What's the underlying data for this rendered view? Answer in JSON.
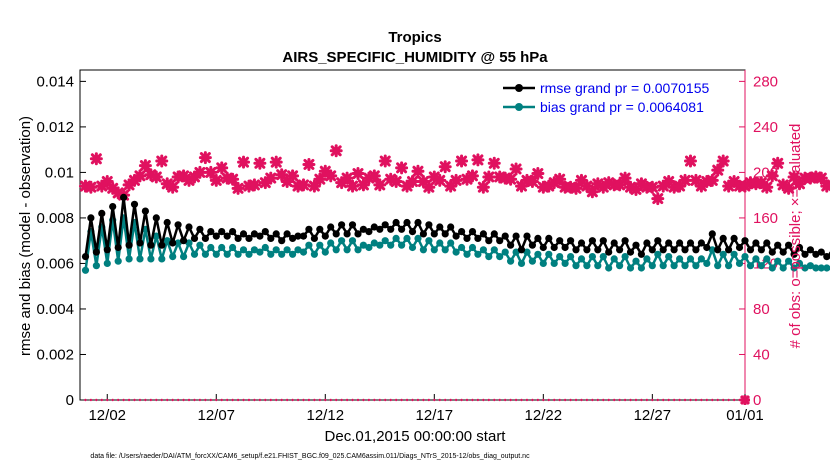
{
  "chart_data": {
    "type": "line",
    "title": "Tropics",
    "subtitle": "AIRS_SPECIFIC_HUMIDITY @ 55 hPa",
    "xlabel": "Dec.01,2015 00:00:00 start",
    "ylabel_left": "rmse and bias (model - observation)",
    "ylabel_right": "# of obs: o=possible; ×=evaluated",
    "ylim_left": [
      0,
      0.0145
    ],
    "ylim_right": [
      0,
      290
    ],
    "xlim": [
      0.75,
      31.25
    ],
    "yticks_left": [
      "0",
      "0.002",
      "0.004",
      "0.006",
      "0.008",
      "0.01",
      "0.012",
      "0.014"
    ],
    "yticks_right": [
      "0",
      "40",
      "80",
      "120",
      "160",
      "200",
      "240",
      "280"
    ],
    "xtick_labels": [
      "12/02",
      "12/07",
      "12/12",
      "12/17",
      "12/22",
      "12/27",
      "01/01"
    ],
    "xtick_values": [
      2,
      7,
      12,
      17,
      22,
      27,
      32
    ],
    "grid": false,
    "legend_position": "top-right",
    "series": [
      {
        "name": "rmse grand pr = 0.0070155",
        "color": "#000000",
        "values": [
          0.0063,
          0.008,
          0.0065,
          0.0082,
          0.0066,
          0.0085,
          0.0067,
          0.0089,
          0.0068,
          0.0086,
          0.0069,
          0.0083,
          0.0068,
          0.008,
          0.0068,
          0.0078,
          0.0069,
          0.0077,
          0.007,
          0.0076,
          0.0071,
          0.0075,
          0.0071,
          0.0074,
          0.0072,
          0.0074,
          0.0072,
          0.0074,
          0.0071,
          0.0073,
          0.0071,
          0.0073,
          0.0072,
          0.0074,
          0.0071,
          0.0073,
          0.007,
          0.0073,
          0.0071,
          0.0072,
          0.0072,
          0.0075,
          0.0071,
          0.0075,
          0.0072,
          0.0076,
          0.0073,
          0.0077,
          0.0073,
          0.0077,
          0.0073,
          0.0075,
          0.0074,
          0.0076,
          0.0075,
          0.0077,
          0.0075,
          0.0078,
          0.0075,
          0.0078,
          0.0074,
          0.0078,
          0.0073,
          0.0077,
          0.0073,
          0.0076,
          0.0073,
          0.0076,
          0.0072,
          0.0074,
          0.0071,
          0.0074,
          0.0071,
          0.0073,
          0.007,
          0.0073,
          0.007,
          0.0072,
          0.0068,
          0.0072,
          0.0066,
          0.0072,
          0.0068,
          0.0071,
          0.0067,
          0.0071,
          0.0067,
          0.007,
          0.0067,
          0.007,
          0.0066,
          0.0069,
          0.0066,
          0.007,
          0.0066,
          0.007,
          0.0065,
          0.0069,
          0.0066,
          0.007,
          0.0065,
          0.0068,
          0.0064,
          0.0069,
          0.0066,
          0.007,
          0.0066,
          0.0069,
          0.0066,
          0.0069,
          0.0066,
          0.0069,
          0.0066,
          0.0069,
          0.0067,
          0.0073,
          0.0066,
          0.0071,
          0.0066,
          0.0071,
          0.0067,
          0.007,
          0.0066,
          0.0069,
          0.0066,
          0.0069,
          0.0065,
          0.0068,
          0.0065,
          0.0068,
          0.0064,
          0.0067,
          0.0064,
          0.0066,
          0.0064,
          0.0065,
          0.0063,
          0.0064,
          0.0062
        ]
      },
      {
        "name": "bias grand pr = 0.0064081",
        "color": "#008080",
        "values": [
          0.0057,
          0.0074,
          0.0059,
          0.0076,
          0.006,
          0.0079,
          0.0061,
          0.008,
          0.0062,
          0.0078,
          0.0062,
          0.0075,
          0.0062,
          0.0072,
          0.0062,
          0.007,
          0.0063,
          0.0069,
          0.0063,
          0.0069,
          0.0064,
          0.0068,
          0.0064,
          0.0067,
          0.0064,
          0.0067,
          0.0064,
          0.0067,
          0.0064,
          0.0066,
          0.0064,
          0.0066,
          0.0065,
          0.0067,
          0.0064,
          0.0066,
          0.0064,
          0.0066,
          0.0064,
          0.0066,
          0.0065,
          0.0068,
          0.0064,
          0.0068,
          0.0065,
          0.0069,
          0.0066,
          0.007,
          0.0066,
          0.007,
          0.0066,
          0.0068,
          0.0067,
          0.0069,
          0.0068,
          0.007,
          0.0068,
          0.0071,
          0.0068,
          0.0071,
          0.0067,
          0.0071,
          0.0066,
          0.007,
          0.0066,
          0.0069,
          0.0066,
          0.0069,
          0.0065,
          0.0067,
          0.0064,
          0.0067,
          0.0064,
          0.0066,
          0.0063,
          0.0066,
          0.0063,
          0.0065,
          0.0061,
          0.0065,
          0.006,
          0.0065,
          0.0061,
          0.0064,
          0.006,
          0.0064,
          0.006,
          0.0063,
          0.006,
          0.0063,
          0.0059,
          0.0062,
          0.0059,
          0.0063,
          0.0059,
          0.0063,
          0.0058,
          0.0062,
          0.0059,
          0.0063,
          0.0058,
          0.0061,
          0.0058,
          0.0062,
          0.0059,
          0.0064,
          0.0059,
          0.0063,
          0.0059,
          0.0062,
          0.0059,
          0.0062,
          0.0059,
          0.0062,
          0.006,
          0.0066,
          0.0059,
          0.0064,
          0.0059,
          0.0064,
          0.006,
          0.0063,
          0.0059,
          0.0062,
          0.0059,
          0.0062,
          0.0058,
          0.0061,
          0.0058,
          0.0061,
          0.0058,
          0.006,
          0.0058,
          0.0059,
          0.0058,
          0.0058,
          0.0058
        ]
      }
    ],
    "obs_possible": {
      "name": "# of obs possible",
      "marker": "o",
      "color": "#e0115f",
      "values": [
        188,
        187,
        212,
        188,
        192,
        186,
        182,
        180,
        189,
        193,
        197,
        206,
        198,
        196,
        210,
        190,
        187,
        196,
        197,
        193,
        196,
        200,
        213,
        200,
        193,
        204,
        195,
        194,
        186,
        209,
        188,
        189,
        208,
        191,
        195,
        209,
        198,
        192,
        197,
        188,
        189,
        207,
        188,
        194,
        201,
        197,
        219,
        191,
        195,
        188,
        199,
        189,
        195,
        197,
        189,
        210,
        194,
        192,
        204,
        188,
        192,
        201,
        192,
        187,
        196,
        193,
        205,
        188,
        193,
        210,
        194,
        197,
        211,
        187,
        196,
        208,
        196,
        195,
        194,
        203,
        188,
        193,
        192,
        199,
        187,
        188,
        191,
        194,
        187,
        187,
        186,
        193,
        188,
        183,
        190,
        187,
        191,
        189,
        189,
        195,
        187,
        185,
        190,
        187,
        187,
        177,
        188,
        192,
        187,
        188,
        193,
        210,
        193,
        188,
        192,
        193,
        202,
        210,
        188,
        192,
        188,
        188,
        191,
        190,
        191,
        187,
        197,
        208,
        189,
        186,
        196,
        190,
        195,
        195,
        196,
        195,
        188,
        189,
        188,
        188,
        188,
        188,
        188,
        213
      ]
    },
    "obs_evaluated": {
      "name": "# of obs evaluated",
      "marker": "x",
      "color": "#e0115f",
      "values": [
        0,
        0,
        0,
        0,
        0,
        0,
        0,
        0,
        0,
        0,
        0,
        0,
        0,
        0,
        0,
        0,
        0,
        0,
        0,
        0,
        0,
        0,
        0,
        0,
        0,
        0,
        0,
        0,
        0,
        0,
        0,
        0,
        0,
        0,
        0,
        0,
        0,
        0,
        0,
        0,
        0,
        0,
        0,
        0,
        0,
        0,
        0,
        0,
        0,
        0,
        0,
        0,
        0,
        0,
        0,
        0,
        0,
        0,
        0,
        0,
        0,
        0,
        0,
        0,
        0,
        0,
        0,
        0,
        0,
        0,
        0,
        0,
        0,
        0,
        0,
        0,
        0,
        0,
        0,
        0,
        0,
        0,
        0,
        0,
        0,
        0,
        0,
        0,
        0,
        0,
        0,
        0,
        0,
        0,
        0,
        0,
        0,
        0,
        0,
        0,
        0,
        0,
        0,
        0,
        0,
        0,
        0,
        0,
        0,
        0,
        0,
        0,
        0,
        0,
        0,
        0,
        0,
        0,
        0,
        0,
        0,
        0,
        0,
        0,
        0,
        0,
        0,
        0,
        0,
        0,
        0,
        0,
        0,
        0,
        0,
        0,
        0,
        0,
        0,
        0,
        0,
        0,
        0,
        0
      ]
    },
    "x_start": 1.0,
    "x_step": 0.25,
    "footnote": "data file: /Users/raeder/DAI/ATM_forcXX/CAM6_setup/f.e21.FHIST_BGC.f09_025.CAM6assim.011/Diags_NTrS_2015-12/obs_diag_output.nc"
  }
}
